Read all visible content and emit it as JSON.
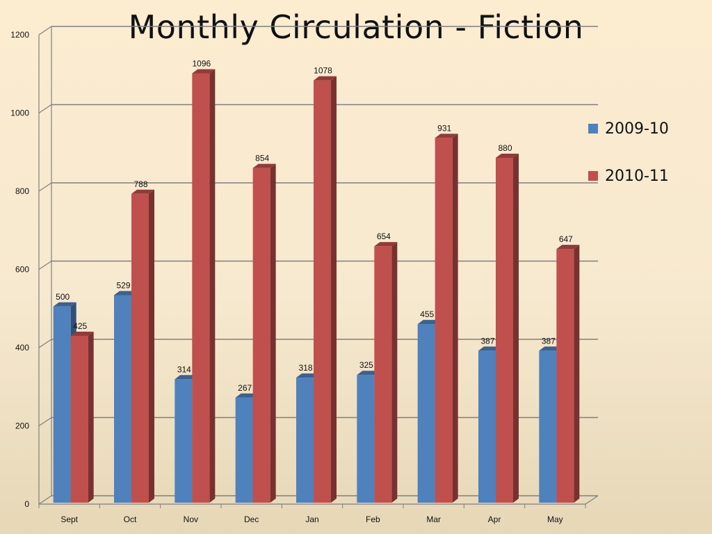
{
  "chart_data": {
    "type": "bar",
    "title": "Monthly Circulation - Fiction",
    "xlabel": "",
    "ylabel": "",
    "ylim": [
      0,
      1200
    ],
    "yticks": [
      0,
      200,
      400,
      600,
      800,
      1000,
      1200
    ],
    "grid": true,
    "legend_position": "right",
    "categories": [
      "Sept",
      "Oct",
      "Nov",
      "Dec",
      "Jan",
      "Feb",
      "Mar",
      "Apr",
      "May"
    ],
    "series": [
      {
        "name": "2009-10",
        "color": "#4f81bd",
        "values": [
          500,
          529,
          314,
          267,
          318,
          325,
          455,
          387,
          387
        ]
      },
      {
        "name": "2010-11",
        "color": "#c0504d",
        "values": [
          425,
          788,
          1096,
          854,
          1078,
          654,
          931,
          880,
          647
        ]
      }
    ]
  }
}
